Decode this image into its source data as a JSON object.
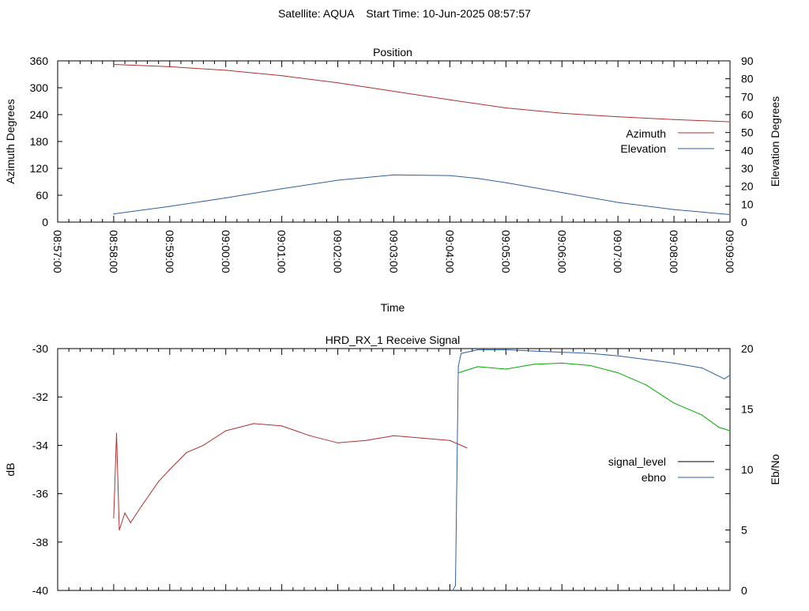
{
  "header": {
    "title": "Satellite: AQUA    Start Time: 10-Jun-2025 08:57:57"
  },
  "chart_data": [
    {
      "type": "line",
      "title": "Position",
      "xlabel": "Time",
      "ylabel": "Azimuth Degrees",
      "y2label": "Elevation Degrees",
      "ylim": [
        0,
        360
      ],
      "y2lim": [
        0,
        90
      ],
      "yticks": [
        "0",
        "60",
        "120",
        "180",
        "240",
        "300",
        "360"
      ],
      "y2ticks": [
        "0",
        "10",
        "20",
        "30",
        "40",
        "50",
        "60",
        "70",
        "80",
        "90"
      ],
      "xticks": [
        "08:57:00",
        "08:58:00",
        "08:59:00",
        "09:00:00",
        "09:01:00",
        "09:02:00",
        "09:03:00",
        "09:04:00",
        "09:05:00",
        "09:06:00",
        "09:07:00",
        "09:08:00",
        "09:09:00"
      ],
      "x_minutes_range": [
        0,
        12
      ],
      "legend_position": "right",
      "grid": false,
      "series": [
        {
          "name": "Azimuth",
          "axis": "left",
          "color": "#b03030",
          "x_minutes": [
            1.0,
            2.0,
            3.0,
            4.0,
            5.0,
            6.0,
            7.0,
            8.0,
            9.0,
            10.0,
            11.0,
            12.0
          ],
          "values": [
            352,
            347,
            339,
            327,
            311,
            292,
            273,
            255,
            243,
            235,
            229,
            224
          ]
        },
        {
          "name": "Elevation",
          "axis": "right",
          "color": "#3060a0",
          "x_minutes": [
            1.0,
            2.0,
            3.0,
            4.0,
            5.0,
            6.0,
            7.0,
            7.5,
            8.0,
            9.0,
            10.0,
            11.0,
            12.0
          ],
          "values": [
            4.6,
            8.8,
            13.5,
            18.6,
            23.4,
            26.4,
            26.0,
            24.4,
            22.0,
            16.5,
            11.0,
            7.0,
            4.2
          ]
        }
      ]
    },
    {
      "type": "line",
      "title": "HRD_RX_1 Receive Signal",
      "ylabel": "dB",
      "y2label": "Eb/No",
      "ylim": [
        -40,
        -30
      ],
      "y2lim": [
        0,
        20
      ],
      "yticks": [
        "-40",
        "-38",
        "-36",
        "-34",
        "-32",
        "-30"
      ],
      "y2ticks": [
        "0",
        "5",
        "10",
        "15",
        "20"
      ],
      "x_minutes_range": [
        0,
        12
      ],
      "legend_position": "right",
      "grid": false,
      "series": [
        {
          "name": "signal_level",
          "axis": "left",
          "color": "#b03030",
          "x_minutes": [
            1.0,
            1.05,
            1.1,
            1.2,
            1.3,
            1.5,
            1.8,
            2.0,
            2.3,
            2.6,
            3.0,
            3.5,
            4.0,
            4.5,
            5.0,
            5.5,
            6.0,
            6.5,
            7.0,
            7.3
          ],
          "values": [
            -37.0,
            -33.5,
            -37.5,
            -36.8,
            -37.2,
            -36.5,
            -35.5,
            -35.0,
            -34.3,
            -34.0,
            -33.4,
            -33.1,
            -33.2,
            -33.6,
            -33.9,
            -33.8,
            -33.6,
            -33.7,
            -33.8,
            -34.1
          ]
        },
        {
          "name": "ebno",
          "axis": "right",
          "color": "#3060a0",
          "x_minutes": [
            7.05,
            7.1,
            7.15,
            7.2,
            7.5,
            8.0,
            8.5,
            9.0,
            9.5,
            10.0,
            10.5,
            11.0,
            11.5,
            11.9,
            12.0
          ],
          "values": [
            0.0,
            0.4,
            18.5,
            19.6,
            19.9,
            19.9,
            19.8,
            19.7,
            19.6,
            19.4,
            19.1,
            18.8,
            18.4,
            17.5,
            17.8
          ]
        },
        {
          "name": "",
          "axis": "right",
          "color": "#00aa00",
          "x_minutes": [
            7.15,
            7.5,
            8.0,
            8.5,
            9.0,
            9.5,
            10.0,
            10.5,
            11.0,
            11.5,
            11.8,
            12.0
          ],
          "values": [
            18.0,
            18.5,
            18.3,
            18.7,
            18.8,
            18.6,
            18.0,
            17.0,
            15.5,
            14.5,
            13.5,
            13.2
          ]
        }
      ]
    }
  ]
}
